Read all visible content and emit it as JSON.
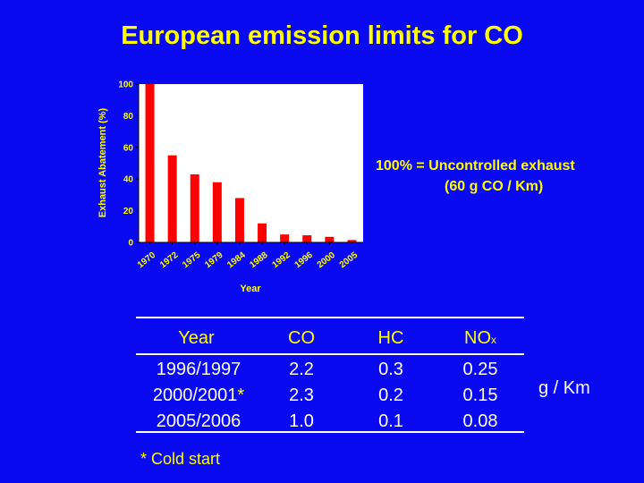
{
  "slide": {
    "title": "European emission limits for CO",
    "note_line1": "100% = Uncontrolled exhaust",
    "note_line2": "(60 g CO / Km)",
    "unit": "g / Km",
    "footnote": "* Cold start"
  },
  "colors": {
    "background": "#0a0af0",
    "title": "#ffff00",
    "bar": "#ff0000",
    "plot_bg": "#ffffff"
  },
  "chart_data": {
    "type": "bar",
    "title": "",
    "xlabel": "Year",
    "ylabel": "Exhaust Abatement (%)",
    "categories": [
      "1970",
      "1972",
      "1975",
      "1979",
      "1984",
      "1988",
      "1992",
      "1996",
      "2000",
      "2005"
    ],
    "values": [
      100,
      55,
      43,
      38,
      28,
      12,
      5,
      4.5,
      3.5,
      1.5
    ],
    "ylim": [
      0,
      100
    ],
    "yticks": [
      0,
      20,
      40,
      60,
      80,
      100
    ],
    "grid": false
  },
  "table": {
    "headers": {
      "year": "Year",
      "co": "CO",
      "hc": "HC",
      "nox_main": "NO",
      "nox_sub": "x"
    },
    "year_lines": [
      "1996/1997",
      "2000/2001",
      "2005/2006"
    ],
    "cold_start_mark": "*",
    "co_lines": [
      "2.2",
      "2.3",
      "1.0"
    ],
    "hc_lines": [
      "0.3",
      "0.2",
      "0.1"
    ],
    "nox_lines": [
      "0.25",
      "0.15",
      "0.08"
    ]
  }
}
